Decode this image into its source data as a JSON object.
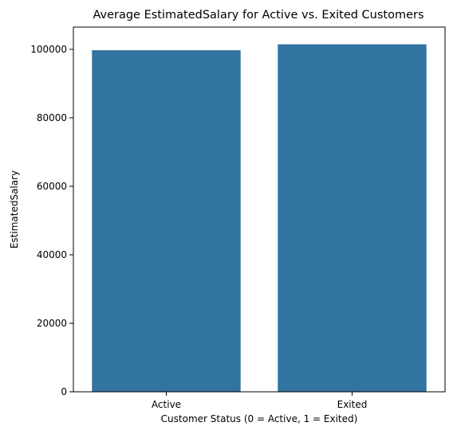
{
  "chart_data": {
    "type": "bar",
    "title": "Average EstimatedSalary for Active vs. Exited Customers",
    "xlabel": "Customer Status (0 = Active, 1 = Exited)",
    "ylabel": "EstimatedSalary",
    "categories": [
      "Active",
      "Exited"
    ],
    "values": [
      99738,
      101466
    ],
    "ylim": [
      0,
      106500
    ],
    "yticks": [
      0,
      20000,
      40000,
      60000,
      80000,
      100000
    ],
    "ytick_labels": [
      "0",
      "20000",
      "40000",
      "60000",
      "80000",
      "100000"
    ],
    "bar_color": "#3274a1",
    "grid": false,
    "legend": "none"
  }
}
